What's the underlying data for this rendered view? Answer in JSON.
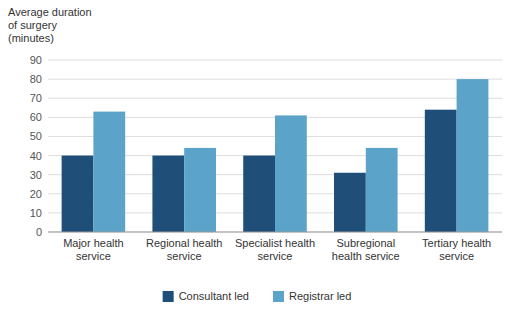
{
  "chart_data": {
    "type": "bar",
    "y_label": "Average duration\nof surgery\n(minutes)",
    "categories": [
      "Major health\nservice",
      "Regional health\nservice",
      "Specialist health\nservice",
      "Subregional\nhealth service",
      "Tertiary health\nservice"
    ],
    "series": [
      {
        "name": "Consultant led",
        "color": "#1F4E79",
        "values": [
          40,
          40,
          40,
          31,
          64
        ]
      },
      {
        "name": "Registrar led",
        "color": "#5BA3C9",
        "values": [
          63,
          44,
          61,
          44,
          80
        ]
      }
    ],
    "ylim": [
      0,
      90
    ],
    "yticks": [
      0,
      10,
      20,
      30,
      40,
      50,
      60,
      70,
      80,
      90
    ],
    "grid": true,
    "legend": "bottom"
  }
}
